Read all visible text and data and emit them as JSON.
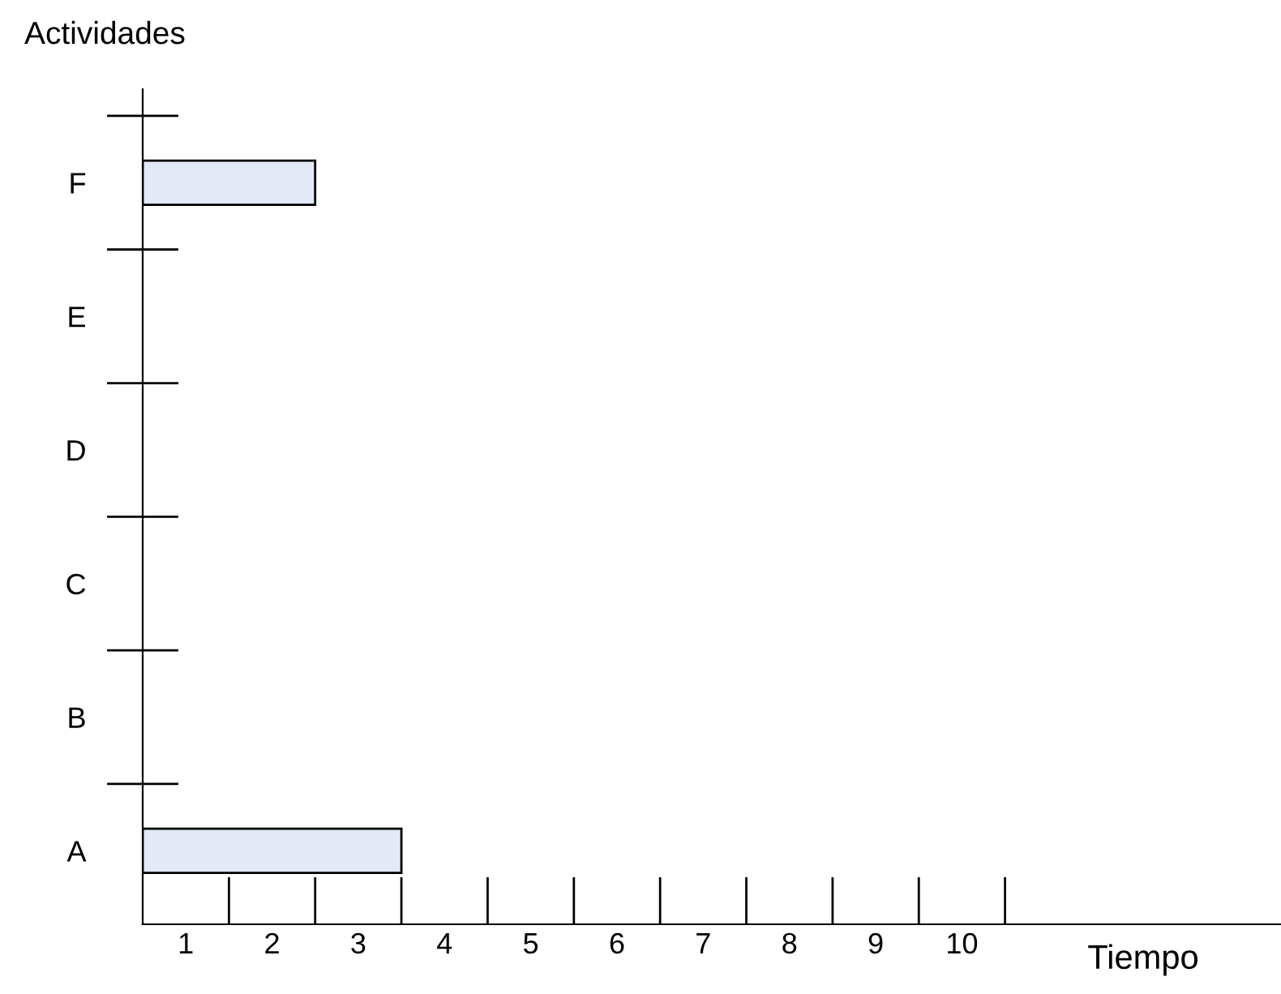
{
  "chart_data": {
    "type": "bar",
    "orientation": "horizontal",
    "ylabel": "Actividades",
    "xlabel": "Tiempo",
    "categories": [
      "F",
      "E",
      "D",
      "C",
      "B",
      "A"
    ],
    "values": [
      2,
      null,
      null,
      null,
      null,
      3
    ],
    "color": "#e3e9f6",
    "xlim": [
      0,
      13.2
    ],
    "xticks": [
      {
        "value": 0.5,
        "label": "1"
      },
      {
        "value": 1.5,
        "label": "2"
      },
      {
        "value": 2.5,
        "label": "3"
      },
      {
        "value": 3.5,
        "label": "4"
      },
      {
        "value": 4.5,
        "label": "5"
      },
      {
        "value": 5.5,
        "label": "6"
      },
      {
        "value": 6.5,
        "label": "7"
      },
      {
        "value": 7.5,
        "label": "8"
      },
      {
        "value": 8.5,
        "label": "9"
      },
      {
        "value": 9.5,
        "label": "10"
      }
    ],
    "grid": false,
    "legend": false
  }
}
